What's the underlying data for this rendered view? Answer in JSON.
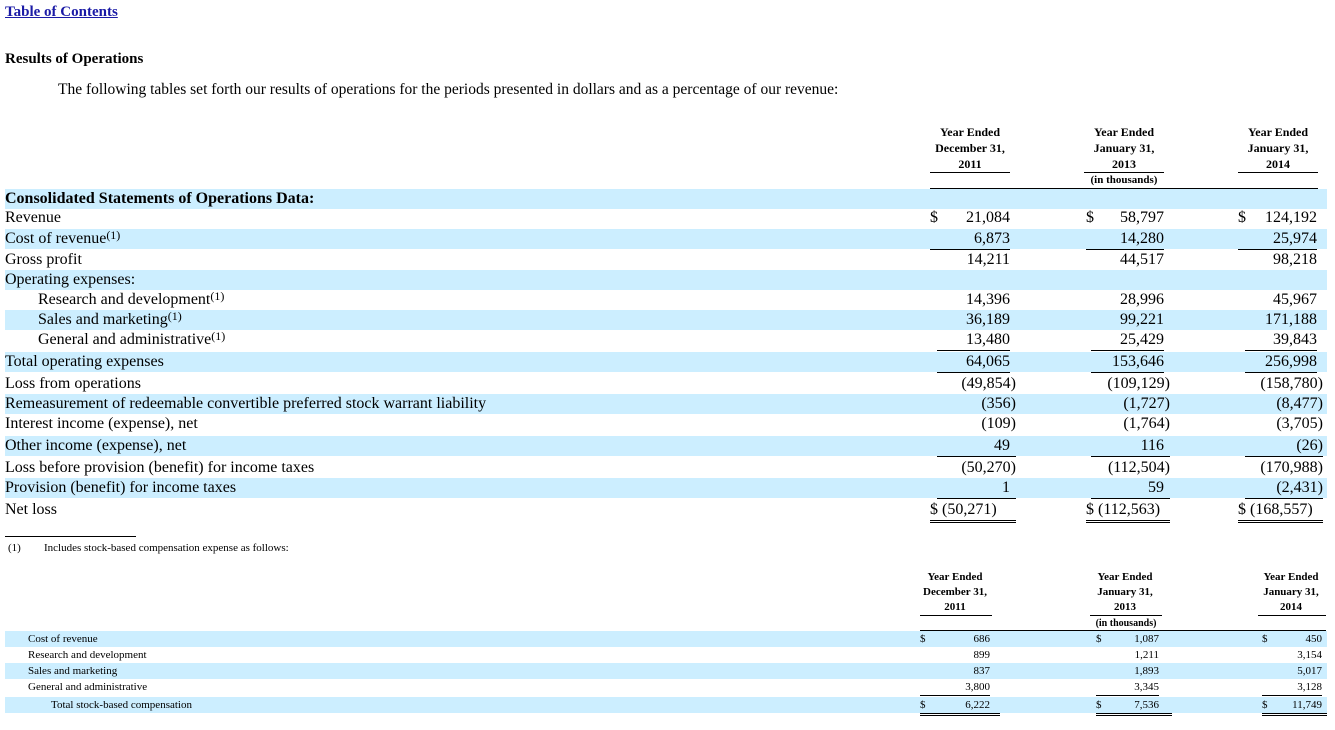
{
  "nav": {
    "toc_link": "Table of Contents"
  },
  "section": {
    "title": "Results of Operations",
    "intro": "The following tables set forth our results of operations for the periods presented in dollars and as a percentage of our revenue:"
  },
  "main_table": {
    "columns": [
      {
        "line1": "Year Ended",
        "line2": "December 31,",
        "line3": "2011"
      },
      {
        "line1": "Year Ended",
        "line2": "January 31,",
        "line3": "2013"
      },
      {
        "line1": "Year Ended",
        "line2": "January 31,",
        "line3": "2014"
      }
    ],
    "units_note": "(in thousands)",
    "section_heading": "Consolidated Statements of Operations Data:",
    "rows": [
      {
        "label": "Revenue",
        "sup": "",
        "values": [
          "21,084",
          "58,797",
          "124,192"
        ],
        "dollar": "$"
      },
      {
        "label": "Cost of revenue",
        "sup": "(1)",
        "values": [
          "6,873",
          "14,280",
          "25,974"
        ]
      },
      {
        "label": "Gross profit",
        "sup": "",
        "values": [
          "14,211",
          "44,517",
          "98,218"
        ]
      },
      {
        "label": "Operating expenses:",
        "sup": "",
        "values": [
          "",
          "",
          ""
        ]
      },
      {
        "label": "Research and development",
        "sup": "(1)",
        "values": [
          "14,396",
          "28,996",
          "45,967"
        ]
      },
      {
        "label": "Sales and marketing",
        "sup": "(1)",
        "values": [
          "36,189",
          "99,221",
          "171,188"
        ]
      },
      {
        "label": "General and administrative",
        "sup": "(1)",
        "values": [
          "13,480",
          "25,429",
          "39,843"
        ]
      },
      {
        "label": "Total operating expenses",
        "sup": "",
        "values": [
          "64,065",
          "153,646",
          "256,998"
        ]
      },
      {
        "label": "Loss from operations",
        "sup": "",
        "values": [
          "(49,854)",
          "(109,129)",
          "(158,780)"
        ]
      },
      {
        "label": "Remeasurement of redeemable convertible preferred stock warrant liability",
        "sup": "",
        "values": [
          "(356)",
          "(1,727)",
          "(8,477)"
        ]
      },
      {
        "label": "Interest income (expense), net",
        "sup": "",
        "values": [
          "(109)",
          "(1,764)",
          "(3,705)"
        ]
      },
      {
        "label": "Other income (expense), net",
        "sup": "",
        "values": [
          "49",
          "116",
          "(26)"
        ]
      },
      {
        "label": "Loss before provision (benefit) for income taxes",
        "sup": "",
        "values": [
          "(50,270)",
          "(112,504)",
          "(170,988)"
        ]
      },
      {
        "label": "Provision (benefit) for income taxes",
        "sup": "",
        "values": [
          "1",
          "59",
          "(2,431)"
        ]
      },
      {
        "label": "Net loss",
        "sup": "",
        "values": [
          "$  (50,271)",
          "$ (112,563)",
          "$ (168,557)"
        ]
      }
    ],
    "dollar_sign": "$"
  },
  "footnote": {
    "marker": "(1)",
    "text": "Includes stock-based compensation expense as follows:"
  },
  "sbc_table": {
    "columns": [
      {
        "line1": "Year Ended",
        "line2": "December 31,",
        "line3": "2011"
      },
      {
        "line1": "Year Ended",
        "line2": "January 31,",
        "line3": "2013"
      },
      {
        "line1": "Year Ended",
        "line2": "January 31,",
        "line3": "2014"
      }
    ],
    "units_note": "(in thousands)",
    "dollar_sign": "$",
    "rows": [
      {
        "label": "Cost of revenue",
        "values": [
          "686",
          "1,087",
          "450"
        ]
      },
      {
        "label": "Research and development",
        "values": [
          "899",
          "1,211",
          "3,154"
        ]
      },
      {
        "label": "Sales and marketing",
        "values": [
          "837",
          "1,893",
          "5,017"
        ]
      },
      {
        "label": "General and administrative",
        "values": [
          "3,800",
          "3,345",
          "3,128"
        ]
      },
      {
        "label": "Total stock-based compensation",
        "values": [
          "6,222",
          "7,536",
          "11,749"
        ]
      }
    ]
  }
}
